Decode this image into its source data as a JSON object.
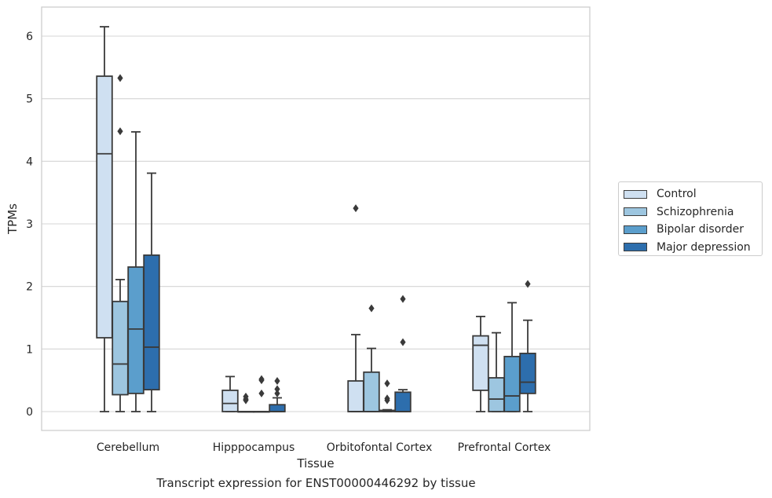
{
  "caption": "Transcript expression for ENST00000446292 by tissue",
  "chart_data": {
    "type": "box",
    "xlabel": "Tissue",
    "ylabel": "TPMs",
    "ylim": [
      -0.3,
      6.45
    ],
    "yticks": [
      0,
      1,
      2,
      3,
      4,
      5,
      6
    ],
    "grid": "horizontal",
    "legend_position": "right",
    "categories": [
      "Cerebellum",
      "Hipppocampus",
      "Orbitofontal Cortex",
      "Prefrontal Cortex"
    ],
    "series": [
      {
        "name": "Control",
        "color": "#cfe0f1",
        "boxes": [
          {
            "whislo": 0,
            "q1": 1.18,
            "med": 4.12,
            "q3": 5.36,
            "whishi": 6.15,
            "fliers": []
          },
          {
            "whislo": 0,
            "q1": 0,
            "med": 0.13,
            "q3": 0.34,
            "whishi": 0.56,
            "fliers": []
          },
          {
            "whislo": 0,
            "q1": 0,
            "med": 0,
            "q3": 0.49,
            "whishi": 1.23,
            "fliers": [
              3.25
            ]
          },
          {
            "whislo": 0,
            "q1": 0.34,
            "med": 1.06,
            "q3": 1.21,
            "whishi": 1.52,
            "fliers": []
          }
        ]
      },
      {
        "name": "Schizophrenia",
        "color": "#9dc6e0",
        "boxes": [
          {
            "whislo": 0,
            "q1": 0.27,
            "med": 0.76,
            "q3": 1.76,
            "whishi": 2.11,
            "fliers": [
              4.48,
              5.33
            ]
          },
          {
            "whislo": 0,
            "q1": 0,
            "med": 0,
            "q3": 0,
            "whishi": 0,
            "fliers": [
              0.18,
              0.2,
              0.24
            ]
          },
          {
            "whislo": 0,
            "q1": 0,
            "med": 0,
            "q3": 0.63,
            "whishi": 1.01,
            "fliers": [
              1.65
            ]
          },
          {
            "whislo": 0,
            "q1": 0,
            "med": 0.2,
            "q3": 0.54,
            "whishi": 1.26,
            "fliers": []
          }
        ]
      },
      {
        "name": "Bipolar disorder",
        "color": "#5b9ecc",
        "boxes": [
          {
            "whislo": 0,
            "q1": 0.29,
            "med": 1.32,
            "q3": 2.31,
            "whishi": 4.47,
            "fliers": []
          },
          {
            "whislo": 0,
            "q1": 0,
            "med": 0,
            "q3": 0,
            "whishi": 0,
            "fliers": [
              0.29,
              0.5,
              0.52
            ]
          },
          {
            "whislo": 0,
            "q1": 0,
            "med": 0.01,
            "q3": 0.02,
            "whishi": 0.03,
            "fliers": [
              0.18,
              0.21,
              0.45
            ]
          },
          {
            "whislo": 0,
            "q1": 0,
            "med": 0.25,
            "q3": 0.88,
            "whishi": 1.74,
            "fliers": []
          }
        ]
      },
      {
        "name": "Major depression",
        "color": "#2d6ead",
        "boxes": [
          {
            "whislo": 0,
            "q1": 0.35,
            "med": 1.03,
            "q3": 2.5,
            "whishi": 3.81,
            "fliers": []
          },
          {
            "whislo": 0,
            "q1": 0,
            "med": 0,
            "q3": 0.11,
            "whishi": 0.22,
            "fliers": [
              0.29,
              0.36,
              0.49
            ]
          },
          {
            "whislo": 0,
            "q1": 0,
            "med": 0,
            "q3": 0.31,
            "whishi": 0.35,
            "fliers": [
              1.11,
              1.8
            ]
          },
          {
            "whislo": 0,
            "q1": 0.29,
            "med": 0.47,
            "q3": 0.93,
            "whishi": 1.46,
            "fliers": [
              2.04
            ]
          }
        ]
      }
    ]
  }
}
